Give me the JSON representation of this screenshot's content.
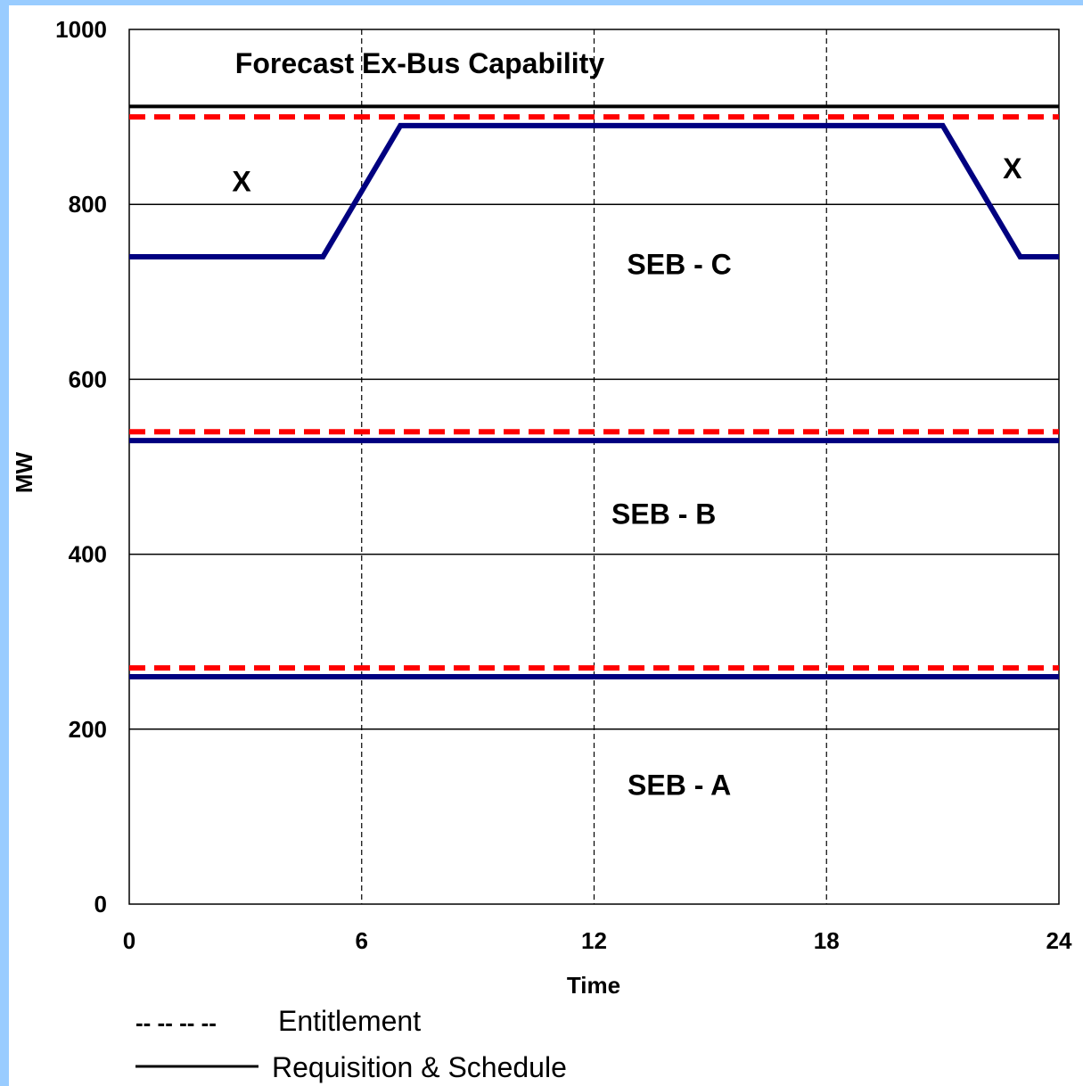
{
  "chart_data": {
    "type": "line",
    "xlabel": "Time",
    "ylabel": "MW",
    "xlim": [
      0,
      24
    ],
    "ylim": [
      0,
      1000
    ],
    "x_ticks": [
      0,
      6,
      12,
      18,
      24
    ],
    "y_ticks": [
      0,
      200,
      400,
      600,
      800,
      1000
    ],
    "y_gridlines": true,
    "x_gridlines_dashed": true,
    "series": [
      {
        "name": "Forecast Ex-Bus Capability",
        "style": "solid",
        "color": "#000000",
        "points": [
          [
            0,
            912
          ],
          [
            24,
            912
          ]
        ]
      },
      {
        "style": "dashed",
        "color": "#ff0000",
        "points": [
          [
            0,
            900
          ],
          [
            24,
            900
          ]
        ]
      },
      {
        "style": "solid",
        "color": "#000080",
        "points": [
          [
            0,
            740
          ],
          [
            5,
            740
          ],
          [
            7,
            890
          ],
          [
            21,
            890
          ],
          [
            23,
            740
          ],
          [
            24,
            740
          ]
        ]
      },
      {
        "style": "dashed",
        "color": "#ff0000",
        "points": [
          [
            0,
            540
          ],
          [
            24,
            540
          ]
        ]
      },
      {
        "style": "solid",
        "color": "#000080",
        "points": [
          [
            0,
            530
          ],
          [
            24,
            530
          ]
        ]
      },
      {
        "style": "dashed",
        "color": "#ff0000",
        "points": [
          [
            0,
            270
          ],
          [
            24,
            270
          ]
        ]
      },
      {
        "style": "solid",
        "color": "#000080",
        "points": [
          [
            0,
            260
          ],
          [
            24,
            260
          ]
        ]
      }
    ],
    "annotations": [
      {
        "text": "Forecast Ex-Bus Capability",
        "x": 7.5,
        "y": 950
      },
      {
        "text": "X",
        "x": 2.9,
        "y": 815
      },
      {
        "text": "X",
        "x": 22.8,
        "y": 830
      },
      {
        "text": "SEB - C",
        "x": 14.2,
        "y": 720
      },
      {
        "text": "SEB - B",
        "x": 13.8,
        "y": 435
      },
      {
        "text": "SEB - A",
        "x": 14.2,
        "y": 125
      }
    ],
    "legend": {
      "position": "bottom-left",
      "entries": [
        {
          "label": "Entitlement",
          "style": "dashed",
          "color": "#000000",
          "dash_text": "-- -- -- --"
        },
        {
          "label": "Requisition & Schedule",
          "style": "solid",
          "color": "#000000"
        }
      ]
    }
  }
}
